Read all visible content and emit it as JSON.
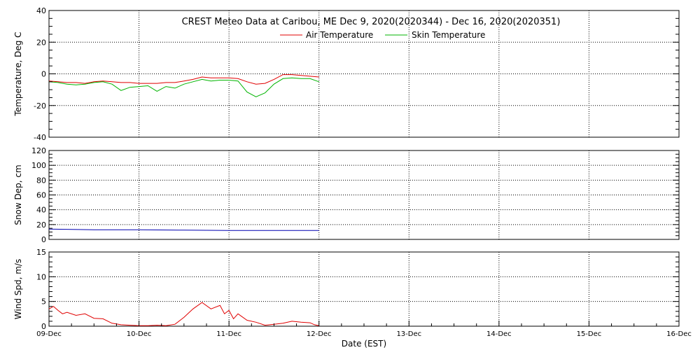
{
  "title": "CREST Meteo Data at Caribou, ME   Dec  9, 2020(2020344) - Dec 16, 2020(2020351)",
  "chart_data": [
    {
      "type": "line",
      "panel": "temperature",
      "ylabel": "Temperature, Deg C",
      "ylim": [
        -40,
        40
      ],
      "yticks": [
        "-40",
        "-20",
        "0",
        "20",
        "40"
      ],
      "grid": true,
      "legend": {
        "placement": "top-center",
        "entries": [
          "Air Temperature",
          "Skin Temperature"
        ]
      },
      "series": [
        {
          "name": "Air Temperature",
          "color": "#e00000",
          "x": [
            0,
            0.1,
            0.2,
            0.3,
            0.4,
            0.5,
            0.6,
            0.7,
            0.8,
            0.9,
            1.0,
            1.1,
            1.2,
            1.3,
            1.4,
            1.5,
            1.6,
            1.7,
            1.8,
            1.9,
            2.0,
            2.1,
            2.2,
            2.3,
            2.4,
            2.5,
            2.6,
            2.7,
            2.8,
            2.9,
            3.0
          ],
          "y": [
            -4.5,
            -5,
            -5.5,
            -5.5,
            -6,
            -5,
            -4.5,
            -5,
            -5.5,
            -5.5,
            -6,
            -6,
            -6,
            -5.5,
            -5.5,
            -4.5,
            -3.5,
            -2,
            -2.5,
            -2.5,
            -2.5,
            -3,
            -5,
            -6.5,
            -6,
            -3.5,
            -0.5,
            -0.5,
            -1,
            -1.5,
            -2
          ]
        },
        {
          "name": "Skin Temperature",
          "color": "#00b400",
          "x": [
            0,
            0.1,
            0.2,
            0.3,
            0.4,
            0.5,
            0.6,
            0.7,
            0.8,
            0.9,
            1.0,
            1.1,
            1.2,
            1.3,
            1.4,
            1.5,
            1.6,
            1.7,
            1.8,
            1.9,
            2.0,
            2.1,
            2.2,
            2.3,
            2.4,
            2.5,
            2.6,
            2.7,
            2.8,
            2.9,
            3.0
          ],
          "y": [
            -5,
            -5.5,
            -6.5,
            -7,
            -6.5,
            -5.5,
            -5,
            -6.5,
            -10.5,
            -8.5,
            -8,
            -7.5,
            -11,
            -8,
            -9,
            -6.5,
            -5,
            -3.5,
            -4.5,
            -4,
            -4,
            -4.5,
            -11.5,
            -14.5,
            -12,
            -6.5,
            -3,
            -2.5,
            -3,
            -3,
            -5
          ]
        }
      ]
    },
    {
      "type": "line",
      "panel": "snow-depth",
      "ylabel": "Snow Dep, cm",
      "ylim": [
        0,
        120
      ],
      "yticks": [
        "0",
        "20",
        "40",
        "60",
        "80",
        "100",
        "120"
      ],
      "grid": true,
      "series": [
        {
          "color": "#0000b0",
          "x": [
            0,
            0.5,
            1.0,
            1.5,
            2.0,
            2.5,
            3.0
          ],
          "y": [
            14,
            13,
            13,
            12.5,
            12,
            12,
            12
          ]
        }
      ]
    },
    {
      "type": "line",
      "panel": "wind-speed",
      "ylabel": "Wind Spd, m/s",
      "ylim": [
        0,
        15
      ],
      "yticks": [
        "0",
        "5",
        "10",
        "15"
      ],
      "grid": true,
      "xlabel": "Date (EST)",
      "xticks": [
        "09-Dec",
        "10-Dec",
        "11-Dec",
        "12-Dec",
        "13-Dec",
        "14-Dec",
        "15-Dec",
        "16-Dec"
      ],
      "xlim": [
        0,
        7
      ],
      "series": [
        {
          "color": "#e00000",
          "x": [
            0,
            0.05,
            0.1,
            0.15,
            0.2,
            0.3,
            0.4,
            0.5,
            0.6,
            0.7,
            0.8,
            0.9,
            1.0,
            1.1,
            1.2,
            1.3,
            1.4,
            1.5,
            1.6,
            1.7,
            1.8,
            1.9,
            1.95,
            2.0,
            2.05,
            2.1,
            2.2,
            2.3,
            2.4,
            2.5,
            2.6,
            2.7,
            2.8,
            2.9,
            2.95,
            3.0
          ],
          "y": [
            3.5,
            4.0,
            3.2,
            2.5,
            2.8,
            2.2,
            2.5,
            1.6,
            1.5,
            0.6,
            0.3,
            0.2,
            0.1,
            0.1,
            0.2,
            0.1,
            0.4,
            1.8,
            3.5,
            4.8,
            3.5,
            4.2,
            2.5,
            3.2,
            1.5,
            2.5,
            1.2,
            0.8,
            0.2,
            0.4,
            0.6,
            1.0,
            0.8,
            0.7,
            0.3,
            0.1
          ]
        }
      ]
    }
  ]
}
